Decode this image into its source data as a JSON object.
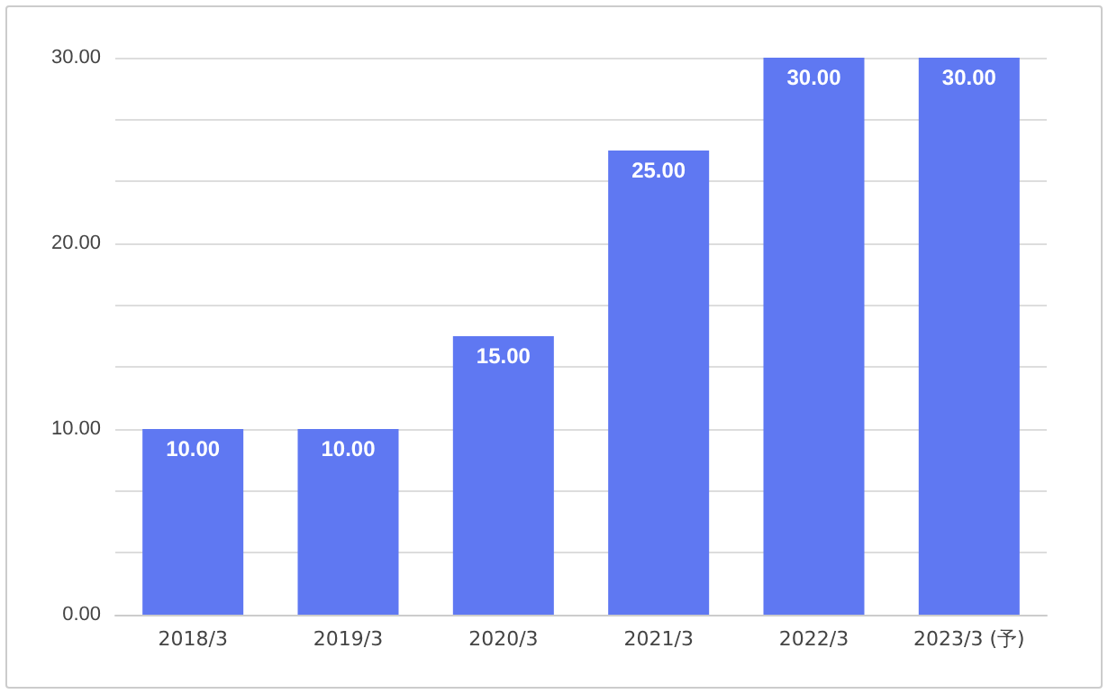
{
  "chart_data": {
    "type": "bar",
    "categories": [
      "2018/3",
      "2019/3",
      "2020/3",
      "2021/3",
      "2022/3",
      "2023/3 (予)"
    ],
    "values": [
      10,
      10,
      15,
      25,
      30,
      30
    ],
    "value_labels": [
      "10.00",
      "10.00",
      "15.00",
      "25.00",
      "30.00",
      "30.00"
    ],
    "color": "#5f78f2",
    "ylim": [
      0,
      30
    ],
    "yticks": [
      {
        "value": 0,
        "label": "0.00"
      },
      {
        "value": 3.33,
        "label": null
      },
      {
        "value": 6.67,
        "label": null
      },
      {
        "value": 10,
        "label": "10.00"
      },
      {
        "value": 13.33,
        "label": null
      },
      {
        "value": 16.67,
        "label": null
      },
      {
        "value": 20,
        "label": "20.00"
      },
      {
        "value": 23.33,
        "label": null
      },
      {
        "value": 26.67,
        "label": null
      },
      {
        "value": 30,
        "label": "30.00"
      }
    ],
    "grid": "y"
  }
}
